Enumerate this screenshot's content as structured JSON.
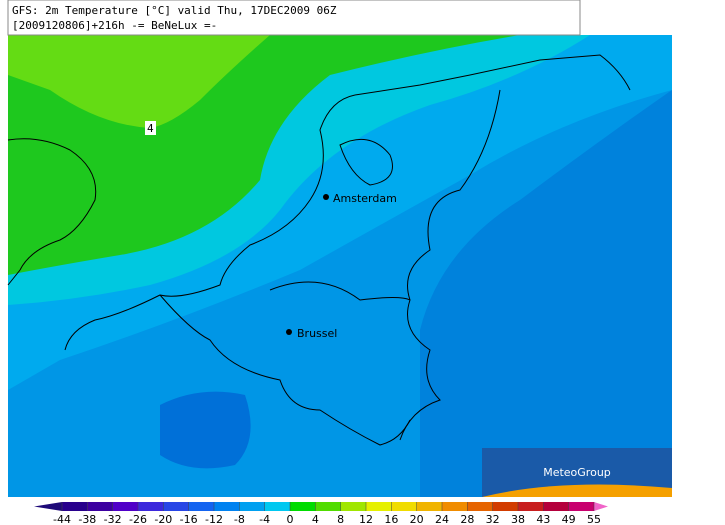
{
  "header": {
    "line1": "GFS: 2m Temperature [°C] valid Thu, 17DEC2009 06Z",
    "line2": "[2009120806]+216h -= BeNeLux =-"
  },
  "cities": [
    {
      "label": "Amsterdam"
    },
    {
      "label": "Brussel"
    }
  ],
  "contour_label": "4",
  "logo": "MeteoGroup",
  "colorbar": {
    "ticks": [
      -44,
      -38,
      -32,
      -26,
      -20,
      -16,
      -12,
      -8,
      -4,
      0,
      4,
      8,
      12,
      16,
      20,
      24,
      28,
      32,
      38,
      43,
      49,
      55
    ],
    "colors": [
      "#1e0a78",
      "#28008c",
      "#3c00a0",
      "#5000c8",
      "#3c28dc",
      "#2846e6",
      "#1464f0",
      "#0082f0",
      "#00a0f0",
      "#00c8f0",
      "#00dc00",
      "#50dc00",
      "#a0e600",
      "#e6f000",
      "#f0dc00",
      "#f0b400",
      "#f08c00",
      "#e66400",
      "#d23c00",
      "#c81e1e",
      "#b4003c",
      "#c8006e",
      "#f064c8"
    ]
  }
}
